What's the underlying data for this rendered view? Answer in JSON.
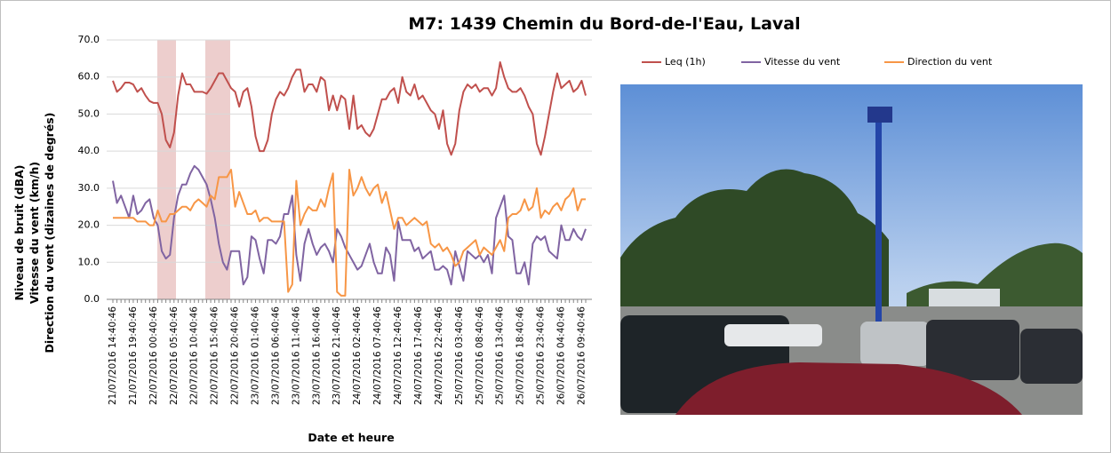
{
  "chart_data": {
    "type": "line",
    "title": "M7: 1439 Chemin du Bord-de-l'Eau, Laval",
    "xlabel": "Date et heure",
    "ylabel": [
      "Niveau de bruit (dBA)",
      "Vitesse du vent (km/h)",
      "Direction du vent (dizaines de degrés)"
    ],
    "categories": [
      "21/07/2016 14:40:46",
      null,
      null,
      null,
      null,
      "21/07/2016 19:40:46",
      null,
      null,
      null,
      null,
      "22/07/2016 00:40:46",
      null,
      null,
      null,
      null,
      "22/07/2016 05:40:46",
      null,
      null,
      null,
      null,
      "22/07/2016 10:40:46",
      null,
      null,
      null,
      null,
      "22/07/2016 15:40:46",
      null,
      null,
      null,
      null,
      "22/07/2016 20:40:46",
      null,
      null,
      null,
      null,
      "23/07/2016 01:40:46",
      null,
      null,
      null,
      null,
      "23/07/2016 06:40:46",
      null,
      null,
      null,
      null,
      "23/07/2016 11:40:46",
      null,
      null,
      null,
      null,
      "23/07/2016 16:40:46",
      null,
      null,
      null,
      null,
      "23/07/2016 21:40:46",
      null,
      null,
      null,
      null,
      "24/07/2016 02:40:46",
      null,
      null,
      null,
      null,
      "24/07/2016 07:40:46",
      null,
      null,
      null,
      null,
      "24/07/2016 12:40:46",
      null,
      null,
      null,
      null,
      "24/07/2016 17:40:46",
      null,
      null,
      null,
      null,
      "24/07/2016 22:40:46",
      null,
      null,
      null,
      null,
      "25/07/2016 03:40:46",
      null,
      null,
      null,
      null,
      "25/07/2016 08:40:46",
      null,
      null,
      null,
      null,
      "25/07/2016 13:40:46",
      null,
      null,
      null,
      null,
      "25/07/2016 18:40:46",
      null,
      null,
      null,
      null,
      "25/07/2016 23:40:46",
      null,
      null,
      null,
      null,
      "26/07/2016 04:40:46",
      null,
      null,
      null,
      null,
      "26/07/2016 09:40:46",
      null
    ],
    "series": [
      {
        "name": "Leq (1h)",
        "color": "#c0504d",
        "values": [
          59,
          56,
          57,
          58.5,
          58.5,
          58,
          56,
          57,
          55,
          53.5,
          53,
          53,
          50,
          43,
          41,
          45,
          55,
          61,
          58,
          58,
          56,
          56,
          56,
          55.5,
          57,
          59,
          61,
          61,
          59,
          57,
          56,
          52,
          56,
          57,
          52,
          44,
          40,
          40,
          43,
          50,
          54,
          56,
          55,
          57,
          60,
          62,
          62,
          56,
          58,
          58,
          56,
          60,
          59,
          51,
          55,
          51,
          55,
          54,
          46,
          55,
          46,
          47,
          45,
          44,
          46,
          50,
          54,
          54,
          56,
          57,
          53,
          60,
          56,
          55,
          58,
          54,
          55,
          53,
          51,
          50,
          46,
          51,
          42,
          39,
          42,
          51,
          56,
          58,
          57,
          58,
          56,
          57,
          57,
          55,
          57,
          64,
          60,
          57,
          56,
          56,
          57,
          55,
          52,
          50,
          42,
          39,
          44,
          50,
          56,
          61,
          57,
          58,
          59,
          56,
          57,
          59,
          55
        ]
      },
      {
        "name": "Vitesse du vent",
        "color": "#8064a2",
        "values": [
          32,
          26,
          28,
          25,
          22,
          28,
          23,
          24,
          26,
          27,
          22,
          20,
          13,
          11,
          12,
          22,
          28,
          31,
          31,
          34,
          36,
          35,
          33,
          31,
          27,
          22,
          15,
          10,
          8,
          13,
          13,
          13,
          4,
          6,
          17,
          16,
          11,
          7,
          16,
          16,
          15,
          17,
          23,
          23,
          28,
          12,
          5,
          15,
          19,
          15,
          12,
          14,
          15,
          13,
          10,
          19,
          17,
          14,
          12,
          10,
          8,
          9,
          12,
          15,
          10,
          7,
          7,
          14,
          12,
          5,
          21,
          16,
          16,
          16,
          13,
          14,
          11,
          12,
          13,
          8,
          8,
          9,
          8,
          4,
          13,
          9,
          5,
          13,
          12,
          11,
          12,
          10,
          12,
          7,
          22,
          25,
          28,
          17,
          16,
          7,
          7,
          10,
          4,
          15,
          17,
          16,
          17,
          13,
          12,
          11,
          20,
          16,
          16,
          19,
          17,
          16,
          19
        ]
      },
      {
        "name": "Direction du vent",
        "color": "#f79646",
        "values": [
          22,
          22,
          22,
          22,
          22,
          22,
          21,
          21,
          21,
          20,
          20,
          24,
          21,
          21,
          23,
          23,
          24,
          25,
          25,
          24,
          26,
          27,
          26,
          25,
          28,
          27,
          33,
          33,
          33,
          35,
          25,
          29,
          26,
          23,
          23,
          24,
          21,
          22,
          22,
          21,
          21,
          21,
          21,
          2,
          4,
          32,
          20,
          23,
          25,
          24,
          24,
          27,
          25,
          30,
          34,
          2,
          1,
          1,
          35,
          28,
          30,
          33,
          30,
          28,
          30,
          31,
          26,
          29,
          24,
          19,
          22,
          22,
          20,
          21,
          22,
          21,
          20,
          21,
          15,
          14,
          15,
          13,
          14,
          12,
          9,
          10,
          13,
          14,
          15,
          16,
          12,
          14,
          13,
          12,
          14,
          16,
          13,
          22,
          23,
          23,
          24,
          27,
          24,
          25,
          30,
          22,
          24,
          23,
          25,
          26,
          24,
          27,
          28,
          30,
          24,
          27,
          27
        ]
      }
    ],
    "ylim": [
      0,
      70
    ],
    "yticks": [
      {
        "value": 0,
        "label": "0.0"
      },
      {
        "value": 10,
        "label": "10.0"
      },
      {
        "value": 20,
        "label": "20.0"
      },
      {
        "value": 30,
        "label": "30.0"
      },
      {
        "value": 40,
        "label": "40.0"
      },
      {
        "value": 50,
        "label": "50.0"
      },
      {
        "value": 60,
        "label": "60.0"
      },
      {
        "value": 70,
        "label": "70.0"
      }
    ],
    "grid": true,
    "legend": "top"
  }
}
